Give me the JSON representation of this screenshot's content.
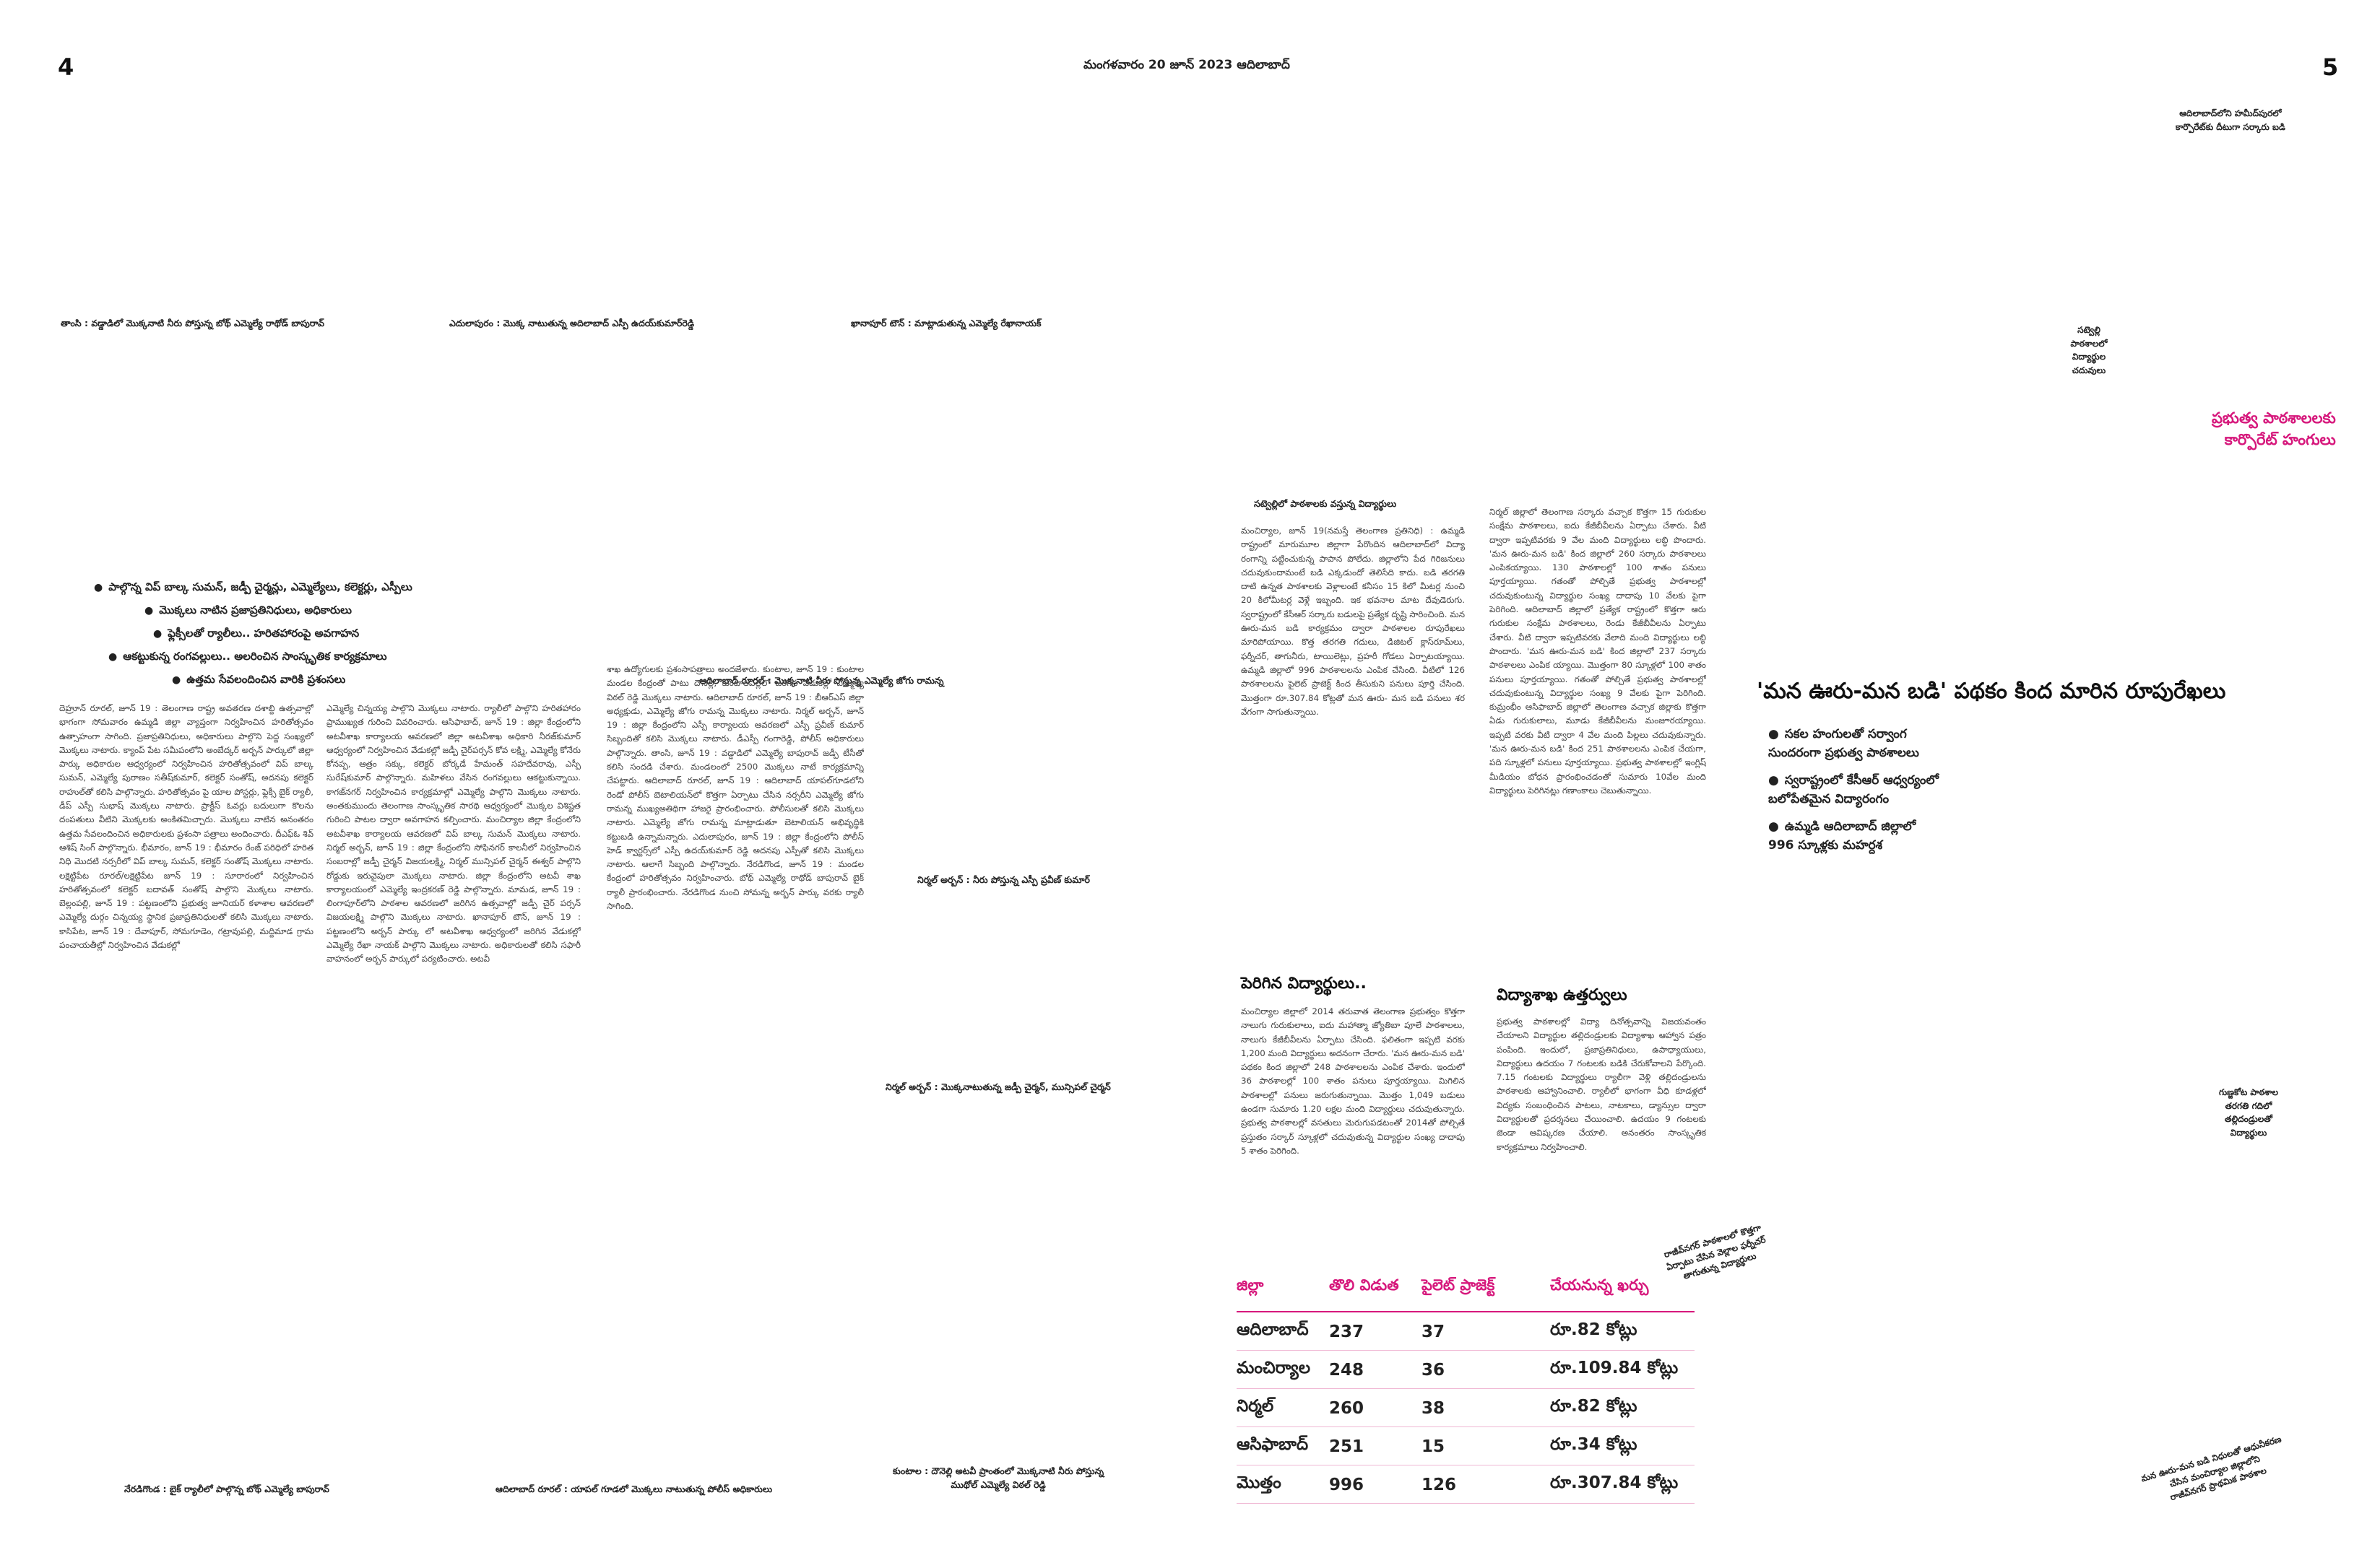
{
  "page": {
    "left_number": "4",
    "right_number": "5",
    "dateline": "మంగళవారం 20 జూన్ 2023 ఆదిలాబాద్"
  },
  "captions": {
    "top_1": "తాంసి : వడ్డాడిలో మొక్కనాటి నీరు పోస్తున్న బోథ్ ఎమ్మెల్యే రాథోడ్ బాపురావ్",
    "top_2": "ఎదులాపురం : మొక్క నాటుతున్న అదిలాబాద్ ఎస్పీ ఉదయ్‌కుమార్‌రెడ్డి",
    "top_3": "ఖానాపూర్ టౌన్ : మాట్లాడుతున్న ఎమ్మెల్యే రేఖానాయక్",
    "mid_1": "ఆదిలాబాద్ రూరల్ : మొక్కనాటి నీరు పోస్తున్న ఎమ్మెల్యే జోగు రామన్న",
    "mid_2": "నిర్మల్ అర్బన్ : నీరు పోస్తున్న ఎస్పీ ప్రవీణ్ కుమార్",
    "mid_3": "నిర్మల్ అర్బన్ : మొక్కనాటుతున్న జడ్పీ చైర్మన్, మున్సిపల్ చైర్మన్",
    "bot_1": "నేరడిగొండ : బైక్ ర్యాలీలో పాల్గొన్న బోథ్ ఎమ్మెల్యే బాపురావ్",
    "bot_2": "ఆదిలాబాద్ రూరల్ : యాపల్ గూడలో మొక్కలు నాటుతున్న పోలీస్ అధికారులు",
    "bot_3a": "కుంటాల : దౌనెల్లి అటవీ ప్రాంతంలో మొక్కనాటి నీరు పోస్తున్న",
    "bot_3b": "ముథోల్ ఎమ్మెల్యే విఠల్ రెడ్డి",
    "photo_right_top_a": "ఆదిలాబాద్‌లోని హమీద్‌పురలో",
    "photo_right_top_b": "కార్పొరేట్‌కు దీటుగా సర్కారు బడి",
    "side_a": "సట్వెల్లి",
    "side_b": "పాఠశాలలో",
    "side_c": "విద్యార్థుల",
    "side_d": "చదువులు",
    "gudi_a": "గుణ్జకోట పాఠశాల",
    "gudi_b": "తరగతి గదిలో",
    "gudi_c": "తల్లిదండ్రులతో",
    "gudi_d": "విద్యార్థులు",
    "rot_mid_a": "రాజీవ్‌నగర్ పాఠశాలలో కొత్తగా",
    "rot_mid_b": "ఏర్పాటు చేసిన వెల్లాల ఫర్నీచర్",
    "rot_mid_c": "తాగుతున్న విద్యార్థులు",
    "rot_bot_a": "మన ఊరు-మన బడి నిధులతో ఆధునీకరణ",
    "rot_bot_b": "చేసిన మంచిర్యాల జిల్లాలోని",
    "rot_bot_c": "రాజీవ్‌నగర్ ప్రాథమిక పాఠశాల"
  },
  "left_story": {
    "bullets": [
      "పాల్గొన్న విప్ బాల్క సుమన్, జడ్పీ చైర్మన్లు, ఎమ్మెల్యేలు, కలెక్టర్లు, ఎస్పీలు",
      "మొక్కలు నాటిన ప్రజాప్రతినిధులు, అధికారులు",
      "ఫ్లెక్సీలతో ర్యాలీలు.. హరితహారంపై అవగాహన",
      "ఆకట్టుకున్న రంగవల్లులు.. అలరించిన సాంస్కృతిక కార్యక్రమాలు",
      "ఉత్తమ సేవలందించిన వారికి ప్రశంసలు"
    ],
    "col1": "దెహ్రూన్ రూరల్, జూన్ 19 : తెలంగాణ రాష్ట్ర అవతరణ దశాబ్ది ఉత్సవాల్లో భాగంగా సోమవారం ఉమ్మడి జిల్లా వ్యాప్తంగా నిర్వహించిన హరితోత్సవం ఉత్సాహంగా సాగింది. ప్రజాప్రతినిధులు, అధికారులు పాల్గొని పెద్ద సంఖ్యలో మొక్కలు నాటారు. క్యాంప్ పేట సమీపంలోని అంబేద్కర్ అర్బన్ పార్కులో జిల్లా పార్కు అధికారుల ఆధ్వర్యంలో నిర్వహించిన హరితోత్సవంలో విప్ బాల్క సుమన్, ఎమ్మెల్యే పురాణం సతీష్‌కుమార్, కలెక్టర్ సంతోష్, అదనపు కలెక్టర్ రాహుల్‌తో కలిసి పాల్గొన్నారు. హరితోత్సవం పై యాల పోస్టర్లు, ఫ్లెక్సీ బైక్ ర్యాలీ, డీప్ ఎస్పీ సుభాష్ మొక్కలు నాటారు. ప్రాక్టీస్ ఓవర్లు బదులుగా కొలను దంపతులు వీటిని మొక్కలకు అంకితమిచ్చారు. మొక్కలు నాటిన అనంతరం ఉత్తమ సేవలందించిన అధికారులకు ప్రశంసా పత్రాలు అందించారు. దీఎఫ్‌ఓ శివ్ ఆశిష్ సింగ్ పాల్గొన్నారు. భీమారం, జూన్ 19 : భీమారం రేంజ్ పరిధిలో హరిత నిధి మొదటి నర్సరీలో విప్ బాల్క సుమన్, కలెక్టర్ సంతోష్ మొక్కలు నాటారు. లక్షెట్టిపేట రూరల్/లక్షెట్టిపేట జూన్ 19 : సూరారంలో నిర్వహించిన హరితోత్సవంలో కలెక్టర్ బదావత్ సంతోష్ పాల్గొని మొక్కలు నాటారు. బెల్లంపల్లి, జూన్ 19 : పట్టణంలోని ప్రభుత్వ జూనియర్ కళాశాల ఆవరణలో ఎమ్మెల్యే దుర్గం చిన్నయ్య స్థానిక ప్రజాప్రతినిధులతో కలిసి మొక్కలు నాటారు. కాసిపేట, జూన్ 19 : దేవాపూర్, సోమగూడెం, గట్రావుపల్లి, మద్దిమాడ గ్రామ పంచాయతీల్లో నిర్వహించిన వేడుకల్లో",
    "col2": "ఎమ్మెల్యే చిన్నయ్య పాల్గొని మొక్కలు నాటారు. ర్యాలీలో పాల్గొని హరితహారం ప్రాముఖ్యత గురించి వివరించారు. ఆసిఫాబాద్, జూన్ 19 : జిల్లా కేంద్రంలోని అటవీశాఖ కార్యాలయ ఆవరణలో జిల్లా అటవీశాఖ అధికారి నీరజ్‌కుమార్ ఆధ్వర్యంలో నిర్వహించిన వేడుకల్లో జడ్పీ చైర్‌పర్సన్ కోవ లక్ష్మి, ఎమ్మెల్యే కోనేరు కోనప్ప, ఆత్రం సక్కు, కలెక్టర్ బోర్కడే హేమంత్ సహదేవరావు, ఎస్పీ సురేష్‌కుమార్ పాల్గొన్నారు. మహిళలు వేసిన రంగవల్లులు ఆకట్టుకున్నాయి. కాగజ్‌నగర్ నిర్వహించిన కార్యక్రమాల్లో ఎమ్మెల్యే పాల్గొని మొక్కలు నాటారు. అంతకుముందు తెలంగాణ సాంస్కృతిక సారథి ఆధ్వర్యంలో మొక్కల విశిష్టత గురించి పాటల ద్వారా అవగాహన కల్పించారు. మంచిర్యాల జిల్లా కేంద్రంలోని అటవీశాఖ కార్యాలయ ఆవరణలో విప్ బాల్క సుమన్ మొక్కలు నాటారు. నిర్మల్ అర్బన్, జూన్ 19 : జిల్లా కేంద్రంలోని సోఫినగర్ కాలనీలో నిర్వహించిన సంబరాల్లో జడ్పీ చైర్మన్ విజయలక్ష్మి, నిర్మల్ మున్సిపల్ చైర్మన్ ఈశ్వర్ పాల్గొని రోడ్డుకు ఇరువైపులా మొక్కలు నాటారు. జిల్లా కేంద్రంలోని అటవీ శాఖ కార్యాలయంలో ఎమ్మెల్యే ఇంద్రకరణ్ రెడ్డి పాల్గొన్నారు. మామడ, జూన్ 19 : లింగాపూర్‌లోని పాఠశాల ఆవరణలో జరిగిన ఉత్సవాల్లో జడ్పీ చైర్ పర్సన్ విజయలక్ష్మి పాల్గొని మొక్కలు నాటారు. ఖానాపూర్ టౌన్, జూన్ 19 : పట్టణంలోని అర్బన్ పార్కు లో అటవీశాఖ ఆధ్వర్యంలో జరిగిన వేడుకల్లో ఎమ్మెల్యే రేఖా నాయక్ పాల్గొని మొక్కలు నాటారు. అధికారులతో కలిసి సఫారీ వాహనంలో అర్బన్ పార్కులో పర్యటించారు. అటవీ",
    "col3": "శాఖ ఉద్యోగులకు ప్రశంసాపత్రాలు అందజేశారు. కుంటాల, జూన్ 19 : కుంటాల మండల కేంద్రంతో పాటు దౌనెల్లి, కుంటాలపల్లిలో జరిగిన వేడుకల్లో ఎమ్మెల్యే విఠల్ రెడ్డి మొక్కలు నాటారు. ఆదిలాబాద్ రూరల్, జూన్ 19 : బీఆర్ఎస్ జిల్లా అధ్యక్షుడు, ఎమ్మెల్యే జోగు రామన్న మొక్కలు నాటారు. నిర్మల్ అర్బన్, జూన్ 19 : జిల్లా కేంద్రంలోని ఎస్పీ కార్యాలయ ఆవరణలో ఎస్పీ ప్రవీణ్ కుమార్ సిబ్బందితో కలిసి మొక్కలు నాటారు. డీఎస్పీ గంగారెడ్డి, పోలీస్ అధికారులు పాల్గొన్నారు. తాంసి, జూన్ 19 : వడ్డాడిలో ఎమ్మెల్యే బాపురావ్ జడ్పీ టీసీతో కలిసి సందడి చేశారు. మండలంలో 2500 మొక్కలు నాటే కార్యక్రమాన్ని చేపట్టారు. ఆదిలాబాద్ రూరల్, జూన్ 19 : ఆదిలాబాద్ యాపల్‌గూడలోని రెండో పోలీస్ బెటాలియన్‌లో కొత్తగా ఏర్పాటు చేసిన నర్సరీని ఎమ్మెల్యే జోగు రామన్న ముఖ్యఅతిథిగా హాజరై ప్రారంభించారు. పోలీసులతో కలిసి మొక్కలు నాటారు. ఎమ్మెల్యే జోగు రామన్న మాట్లాడుతూ బెటాలియన్ అభివృద్ధికి కట్టుబడి ఉన్నామన్నారు. ఎదులాపురం, జూన్ 19 : జిల్లా కేంద్రంలోని పోలీస్ హెడ్ క్వార్టర్స్‌లో ఎస్పీ ఉదయ్‌కుమార్ రెడ్డి అదనపు ఎస్పీతో కలిసి మొక్కలు నాటారు. ఆలాగే సిబ్బంది పాల్గొన్నారు. నేరడిగొండ, జూన్ 19 : మండల కేంద్రంలో హరితోత్సవం నిర్వహించారు. బోథ్ ఎమ్మెల్యే రాథోడ్ బాపురావ్ బైక్ ర్యాలీ ప్రారంభించారు. నేరడిగొండ నుంచి సోమన్న అర్బన్ పార్కు వరకు ర్యాలీ సాగింది."
  },
  "right_story": {
    "col_head": "సట్వెల్లిలో పాఠశాలకు వస్తున్న విద్యార్థులు",
    "col1": "మంచిర్యాల, జూన్ 19(నమస్తే తెలంగాణ ప్రతినిధి) : ఉమ్మడి రాష్ట్రంలో మారుమూల జిల్లాగా పేరొందిన ఆదిలాబాద్‌లో విద్యా రంగాన్ని పట్టించుకున్న పాపాన పోలేదు. జిల్లాలోని పేద గిరిజనులు చదువుకుందామంటే బడి ఎక్కడుందో తెలిసేది కాదు. బడి తరగతి దాటి ఉన్నత పాఠశాలకు వెళ్లాలంటే కనీసం 15 కిలో మీటర్ల నుంచి 20 కిలోమీటర్ల వెళ్లే ఇబ్బంది. ఇక భవనాల మాట దేవుడెరుగు. స్వరాష్ట్రంలో కేసీఆర్ సర్కారు బడులపై ప్రత్యేక దృష్టి సారించింది. మన ఊరు-మన బడి కార్యక్రమం ద్వారా పాఠశాలల రూపురేఖలు మారిపోయాయి. కొత్త తరగతి గదులు, డిజిటల్ క్లాస్‌రూమ్‌లు, ఫర్నీచర్, తాగునీరు, టాయిలెట్లు, ప్రహరీ గోడలు ఏర్పాటయ్యాయి. ఉమ్మడి జిల్లాలో 996 పాఠశాలలను ఎంపిక చేసింది. వీటిలో 126 పాఠశాలలను పైలెట్ ప్రాజెక్ట్ కింద తీసుకుని పనులు పూర్తి చేసింది. మొత్తంగా రూ.307.84 కోట్లతో మన ఊరు- మన బడి పనులు శర వేగంగా సాగుతున్నాయి.",
    "subhead": "పెరిగిన విద్యార్థులు..",
    "col1b": "మంచిర్యాల జిల్లాలో 2014 తరువాత తెలంగాణ ప్రభుత్వం కొత్తగా నాలుగు గురుకులాలు, ఐదు మహాత్మా జ్యోతిబా పూలే పాఠశాలలు, నాలుగు కేజీబీవీలను ఏర్పాటు చేసింది. ఫలితంగా ఇప్పటి వరకు 1,200 మంది విద్యార్థులు అదనంగా చేరారు. 'మన ఊరు-మన బడి' పథకం కింద జిల్లాలో 248 పాఠశాలలను ఎంపిక చేశారు. ఇందులో 36 పాఠశాలల్లో 100 శాతం పనులు పూర్తయ్యాయి. మిగిలిన పాఠశాలల్లో పనులు జరుగుతున్నాయి. మొత్తం 1,049 బడులు ఉండగా సుమారు 1.20 లక్షల మంది విద్యార్థులు చదువుతున్నారు. ప్రభుత్వ పాఠశాలల్లో వసతులు మెరుగుపడటంతో 2014తో పోల్చితే ప్రస్తుతం సర్కార్ స్కూళ్లలో చదువుతున్న విద్యార్థుల సంఖ్య దాదాపు 5 శాతం పెరిగింది.",
    "col2": "నిర్మల్ జిల్లాలో తెలంగాణ సర్కారు వచ్చాక కొత్తగా 15 గురుకుల సంక్షేమ పాఠశాలలు, ఐదు కేజీబీవీలను ఏర్పాటు చేశారు. వీటి ద్వారా ఇప్పటివరకు 9 వేల మంది విద్యార్థులు లబ్ధి పొందారు. 'మన ఊరు-మన బడి' కింద జిల్లాలో 260 సర్కారు పాఠశాలలు ఎంపికయ్యాయి. 130 పాఠశాలల్లో 100 శాతం పనులు పూర్తయ్యాయి. గతంతో పోల్చితే ప్రభుత్వ పాఠశాలల్లో చదువుకుంటున్న విద్యార్థుల సంఖ్య దాదాపు 10 వేలకు పైగా పెరిగింది. ఆదిలాబాద్ జిల్లాలో ప్రత్యేక రాష్ట్రంలో కొత్తగా ఆరు గురుకుల సంక్షేమ పాఠశాలలు, రెండు కేజీబీవీలను ఏర్పాటు చేశారు. వీటి ద్వారా ఇప్పటివరకు వేలాది మంది విద్యార్థులు లబ్ధి పొందారు. 'మన ఊరు-మన బడి' కింద జిల్లాలో 237 సర్కారు పాఠశాలలు ఎంపిక య్యాయి. మొత్తంగా 80 స్కూళ్లలో 100 శాతం పనులు పూర్తయ్యాయి. గతంతో పోల్చితే ప్రభుత్వ పాఠశాలల్లో చదువుకుంటున్న విద్యార్థుల సంఖ్య 9 వేలకు పైగా పెరిగింది. కుమ్రంభీం ఆసిఫాబాద్ జిల్లాలో తెలంగాణ వచ్చాక జిల్లాకు కొత్తగా ఏడు గురుకులాలు, మూడు కేజీబీవీలను మంజూరయ్యాయి. ఇప్పటి వరకు వీటి ద్వారా 4 వేల మంది పిల్లలు చదువుకున్నారు. 'మన ఊరు-మన బడి' కింద 251 పాఠశాలలను ఎంపిక చేయగా, పది స్కూళ్లలో పనులు పూర్తయ్యాయి. ప్రభుత్వ పాఠశాలల్లో ఇంగ్లిష్ మీడియం బోధన ప్రారంభించడంతో సుమారు 10వేల మంది విద్యార్థులు పెరిగినట్లు గణాంకాలు చెబుతున్నాయి.",
    "subhead2": "విద్యాశాఖ ఉత్తర్వులు",
    "col2b": "ప్రభుత్వ పాఠశాలల్లో విద్యా దినోత్సవాన్ని విజయవంతం చేయాలని విద్యార్థుల తల్లిదండ్రులకు విద్యాశాఖ ఆహ్వాన పత్రం పంపింది. ఇందులో, ప్రజాప్రతినిధులు, ఉపాధ్యాయులు, విద్యార్థులు ఉదయం 7 గంటలకు బడికి చేరుకోవాలని పేర్కొంది. 7.15 గంటలకు విద్యార్థులు ర్యాలీగా వెళ్లి తల్లిదండ్రులను పాఠశాలకు ఆహ్వానించాలి. ర్యాలీలో భాగంగా వీధి కూడళ్లలో విద్యకు సంబంధించిన పాటలు, నాటకాలు, డ్యాన్సుల ద్వారా విద్యార్థులతో ప్రదర్శనలు చేయించాలి. ఉదయం 9 గంటలకు జెండా ఆవిష్కరణ చేయాలి. అనంతరం సాంస్కృతిక కార్యక్రమాలు నిర్వహించాలి."
  },
  "right_headline": {
    "main": "'మన ఊరు-మన బడి' పథకం కింద మారిన రూపురేఖలు",
    "kicker_1": "ప్రభుత్వ పాఠశాలలకు",
    "kicker_2": "కార్పొరేట్ హంగులు",
    "bullets": [
      "సకల హంగులతో సర్వాంగ సుందరంగా ప్రభుత్వ పాఠశాలలు",
      "స్వరాష్ట్రంలో కేసీఆర్ ఆధ్వర్యంలో బలోపేతమైన విద్యారంగం",
      "ఉమ్మడి ఆదిలాబాద్ జిల్లాలో 996 స్కూళ్లకు మహర్దశ"
    ]
  },
  "district_table": {
    "headers": [
      "జిల్లా",
      "తొలి విడుత",
      "పైలెట్ ప్రాజెక్ట్",
      "చేయనున్న ఖర్చు"
    ],
    "rows": [
      [
        "ఆదిలాబాద్",
        "237",
        "37",
        "రూ.82 కోట్లు"
      ],
      [
        "మంచిర్యాల",
        "248",
        "36",
        "రూ.109.84 కోట్లు"
      ],
      [
        "నిర్మల్",
        "260",
        "38",
        "రూ.82 కోట్లు"
      ],
      [
        "ఆసిఫాబాద్",
        "251",
        "15",
        "రూ.34 కోట్లు"
      ],
      [
        "మొత్తం",
        "996",
        "126",
        "రూ.307.84 కోట్లు"
      ]
    ]
  },
  "colors": {
    "accent_pink": "#d6187c",
    "text": "#222222",
    "body_text": "#444444"
  }
}
